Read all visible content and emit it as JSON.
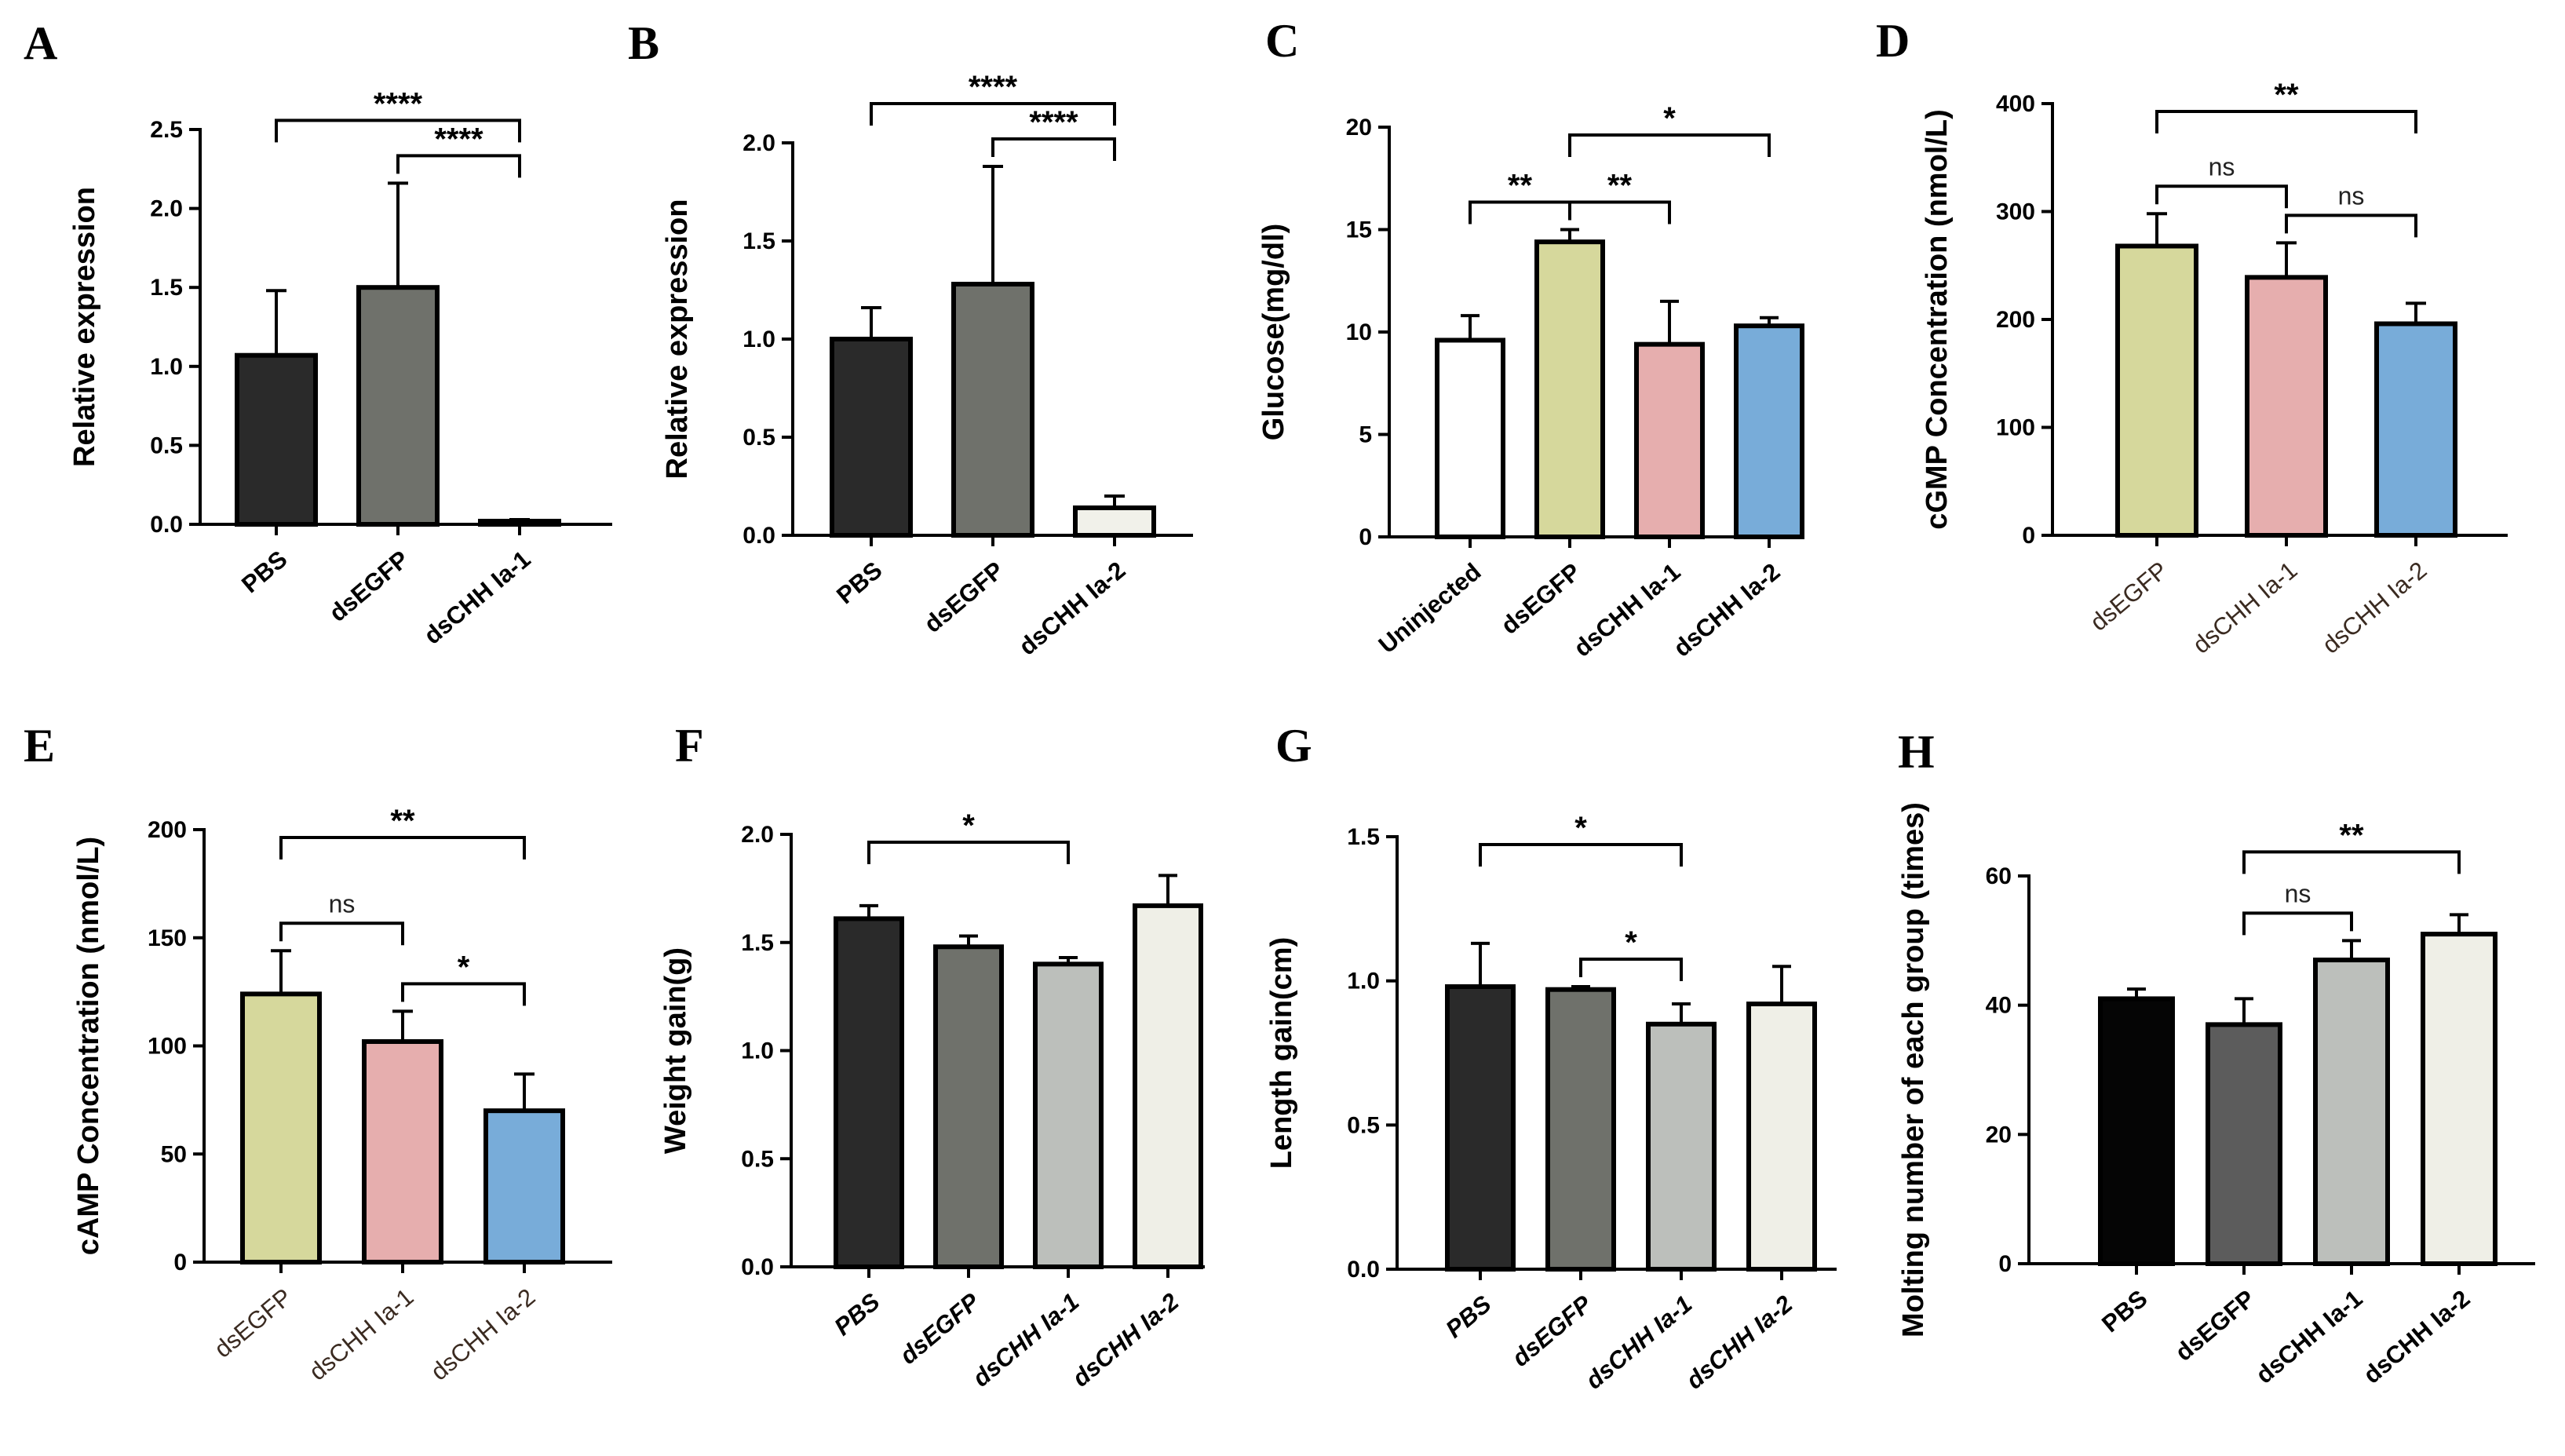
{
  "figure_title": "",
  "chart_data": [
    {
      "panel": "A",
      "type": "bar",
      "ylabel": "Relative expression",
      "ylim": [
        0,
        2.5
      ],
      "yticks": [
        0.0,
        0.5,
        1.0,
        1.5,
        2.0,
        2.5
      ],
      "ytick_labels": [
        "0.0",
        "0.5",
        "1.0",
        "1.5",
        "2.0",
        "2.5"
      ],
      "categories": [
        "PBS",
        "dsEGFP",
        "dsCHH  Ia-1"
      ],
      "values": [
        1.07,
        1.5,
        0.02
      ],
      "errors": [
        0.41,
        0.66,
        0.01
      ],
      "bar_colors": [
        "#2a2a2a",
        "#6f716b",
        "#f1f1ea"
      ],
      "label_rotation": -40,
      "label_style": "bold",
      "comparisons": [
        {
          "from": 0,
          "to": 2,
          "label": "****"
        },
        {
          "from": 1,
          "to": 2,
          "label": "****"
        }
      ]
    },
    {
      "panel": "B",
      "type": "bar",
      "ylabel": "Relative expression",
      "ylim": [
        0,
        2.0
      ],
      "yticks": [
        0.0,
        0.5,
        1.0,
        1.5,
        2.0
      ],
      "ytick_labels": [
        "0.0",
        "0.5",
        "1.0",
        "1.5",
        "2.0"
      ],
      "categories": [
        "PBS",
        "dsEGFP",
        "dsCHH  Ia-2"
      ],
      "values": [
        1.0,
        1.28,
        0.14
      ],
      "errors": [
        0.16,
        0.6,
        0.06
      ],
      "bar_colors": [
        "#2a2a2a",
        "#6f716b",
        "#f1f1ea"
      ],
      "label_rotation": -40,
      "label_style": "bold",
      "comparisons": [
        {
          "from": 0,
          "to": 2,
          "label": "****"
        },
        {
          "from": 1,
          "to": 2,
          "label": "****"
        }
      ]
    },
    {
      "panel": "C",
      "type": "bar",
      "ylabel": "Glucose(mg/dl)",
      "ylim": [
        0,
        20
      ],
      "yticks": [
        0,
        5,
        10,
        15,
        20
      ],
      "ytick_labels": [
        "0",
        "5",
        "10",
        "15",
        "20"
      ],
      "categories": [
        "Uninjected",
        "dsEGFP",
        "dsCHH Ia-1",
        "dsCHH Ia-2"
      ],
      "values": [
        9.6,
        14.4,
        9.4,
        10.3
      ],
      "errors": [
        1.2,
        0.6,
        2.1,
        0.4
      ],
      "bar_colors": [
        "#ffffff",
        "#d6d89c",
        "#e6aeae",
        "#78acd9"
      ],
      "label_rotation": -40,
      "label_style": "bold",
      "comparisons": [
        {
          "from": 0,
          "to": 1,
          "label": "**"
        },
        {
          "from": 1,
          "to": 2,
          "label": "**"
        },
        {
          "from": 1,
          "to": 3,
          "label": "*"
        }
      ]
    },
    {
      "panel": "D",
      "type": "bar",
      "ylabel": "cGMP Concentration (nmol/L)",
      "ylim": [
        0,
        400
      ],
      "yticks": [
        0,
        100,
        200,
        300,
        400
      ],
      "ytick_labels": [
        "0",
        "100",
        "200",
        "300",
        "400"
      ],
      "categories": [
        "dsEGFP",
        "dsCHH Ia-1",
        "dsCHH Ia-2"
      ],
      "values": [
        268,
        239,
        196
      ],
      "errors": [
        30,
        32,
        19
      ],
      "bar_colors": [
        "#d6d89c",
        "#e6aeae",
        "#78acd9"
      ],
      "label_rotation": -40,
      "label_style": "light",
      "comparisons": [
        {
          "from": 0,
          "to": 1,
          "label": "ns"
        },
        {
          "from": 1,
          "to": 2,
          "label": "ns"
        },
        {
          "from": 0,
          "to": 2,
          "label": "**"
        }
      ]
    },
    {
      "panel": "E",
      "type": "bar",
      "ylabel": "cAMP Concentration (nmol/L)",
      "ylim": [
        0,
        200
      ],
      "yticks": [
        0,
        50,
        100,
        150,
        200
      ],
      "ytick_labels": [
        "0",
        "50",
        "100",
        "150",
        "200"
      ],
      "categories": [
        "dsEGFP",
        "dsCHH Ia-1",
        "dsCHH Ia-2"
      ],
      "values": [
        124,
        102,
        70
      ],
      "errors": [
        20,
        14,
        17
      ],
      "bar_colors": [
        "#d6d89c",
        "#e6aeae",
        "#78acd9"
      ],
      "label_rotation": -40,
      "label_style": "light",
      "comparisons": [
        {
          "from": 0,
          "to": 1,
          "label": "ns"
        },
        {
          "from": 1,
          "to": 2,
          "label": "*"
        },
        {
          "from": 0,
          "to": 2,
          "label": "**"
        }
      ]
    },
    {
      "panel": "F",
      "type": "bar",
      "ylabel": "Weight gain(g)",
      "ylim": [
        0,
        2.0
      ],
      "yticks": [
        0.0,
        0.5,
        1.0,
        1.5,
        2.0
      ],
      "ytick_labels": [
        "0.0",
        "0.5",
        "1.0",
        "1.5",
        "2.0"
      ],
      "categories": [
        "PBS",
        "dsEGFP",
        "dsCHH  Ia-1",
        "dsCHH  Ia-2"
      ],
      "values": [
        1.61,
        1.48,
        1.4,
        1.67
      ],
      "errors": [
        0.06,
        0.05,
        0.03,
        0.14
      ],
      "bar_colors": [
        "#2a2a2a",
        "#6f716b",
        "#bcbfbb",
        "#efefe7"
      ],
      "label_rotation": -40,
      "label_style": "italic",
      "comparisons": [
        {
          "from": 0,
          "to": 2,
          "label": "*"
        }
      ]
    },
    {
      "panel": "G",
      "type": "bar",
      "ylabel": "Length gain(cm)",
      "ylim": [
        0,
        1.5
      ],
      "yticks": [
        0.0,
        0.5,
        1.0,
        1.5
      ],
      "ytick_labels": [
        "0.0",
        "0.5",
        "1.0",
        "1.5"
      ],
      "categories": [
        "PBS",
        "dsEGFP",
        "dsCHH  Ia-1",
        "dsCHH  Ia-2"
      ],
      "values": [
        0.98,
        0.97,
        0.85,
        0.92
      ],
      "errors": [
        0.15,
        0.01,
        0.07,
        0.13
      ],
      "bar_colors": [
        "#2a2a2a",
        "#6f716b",
        "#bcbfbb",
        "#efefe7"
      ],
      "label_rotation": -40,
      "label_style": "italic",
      "comparisons": [
        {
          "from": 0,
          "to": 2,
          "label": "*"
        },
        {
          "from": 1,
          "to": 2,
          "label": "*"
        }
      ]
    },
    {
      "panel": "H",
      "type": "bar",
      "ylabel": "Molting number of each group (times)",
      "ylim": [
        0,
        60
      ],
      "yticks": [
        0,
        20,
        40,
        60
      ],
      "ytick_labels": [
        "0",
        "20",
        "40",
        "60"
      ],
      "categories": [
        "PBS",
        "dsEGFP",
        "dsCHH Ia-1",
        "dsCHH Ia-2"
      ],
      "values": [
        41,
        37,
        47,
        51
      ],
      "errors": [
        1.5,
        4,
        3,
        3
      ],
      "bar_colors": [
        "#050505",
        "#5c5c5c",
        "#bcbfbb",
        "#efefe7"
      ],
      "label_rotation": -40,
      "label_style": "bold",
      "comparisons": [
        {
          "from": 1,
          "to": 2,
          "label": "ns"
        },
        {
          "from": 1,
          "to": 3,
          "label": "**"
        }
      ]
    }
  ]
}
